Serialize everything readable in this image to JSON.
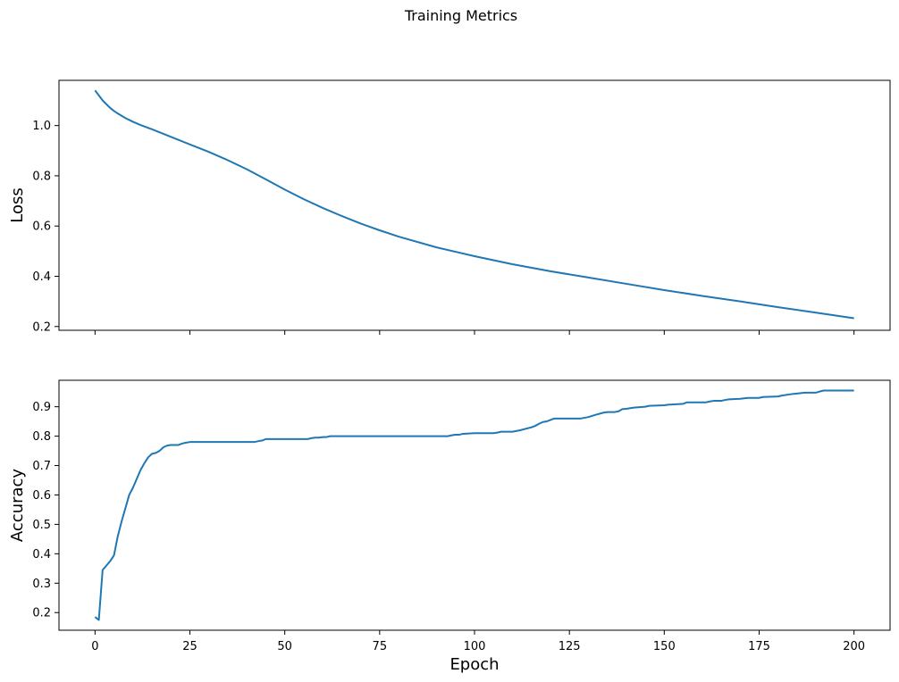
{
  "figure": {
    "title": "Training Metrics",
    "line_color": "#1f77b4"
  },
  "chart_data": [
    {
      "type": "line",
      "title": "",
      "xlabel": "",
      "ylabel": "Loss",
      "xlim": [
        -9.5,
        209.5
      ],
      "ylim": [
        0.185,
        1.18
      ],
      "x_ticks": [
        0,
        25,
        50,
        75,
        100,
        125,
        150,
        175,
        200
      ],
      "x_ticklabels_visible": false,
      "y_ticks": [
        0.2,
        0.4,
        0.6,
        0.8,
        1.0
      ],
      "y_ticklabels": [
        "0.2",
        "0.4",
        "0.6",
        "0.8",
        "1.0"
      ],
      "grid": false,
      "series": [
        {
          "x": [
            0,
            1,
            2,
            3,
            4,
            5,
            6,
            8,
            10,
            12,
            15,
            20,
            25,
            30,
            35,
            40,
            45,
            50,
            55,
            60,
            65,
            70,
            75,
            80,
            90,
            100,
            110,
            120,
            130,
            140,
            150,
            160,
            170,
            180,
            190,
            200
          ],
          "y": [
            1.14,
            1.12,
            1.1,
            1.085,
            1.07,
            1.058,
            1.048,
            1.03,
            1.015,
            1.002,
            0.985,
            0.955,
            0.925,
            0.895,
            0.862,
            0.826,
            0.786,
            0.745,
            0.707,
            0.672,
            0.64,
            0.61,
            0.583,
            0.558,
            0.515,
            0.48,
            0.448,
            0.42,
            0.395,
            0.37,
            0.345,
            0.322,
            0.3,
            0.277,
            0.255,
            0.233
          ]
        }
      ]
    },
    {
      "type": "line",
      "title": "",
      "xlabel": "Epoch",
      "ylabel": "Accuracy",
      "xlim": [
        -9.5,
        209.5
      ],
      "ylim": [
        0.14,
        0.99
      ],
      "x_ticks": [
        0,
        25,
        50,
        75,
        100,
        125,
        150,
        175,
        200
      ],
      "x_ticklabels": [
        "0",
        "25",
        "50",
        "75",
        "100",
        "125",
        "150",
        "175",
        "200"
      ],
      "y_ticks": [
        0.2,
        0.3,
        0.4,
        0.5,
        0.6,
        0.7,
        0.8,
        0.9
      ],
      "y_ticklabels": [
        "0.2",
        "0.3",
        "0.4",
        "0.5",
        "0.6",
        "0.7",
        "0.8",
        "0.9"
      ],
      "grid": false,
      "series": [
        {
          "x": [
            0,
            1,
            2,
            3,
            4,
            5,
            6,
            7,
            8,
            9,
            10,
            11,
            12,
            13,
            14,
            15,
            16,
            17,
            18,
            19,
            20,
            21,
            22,
            23,
            24,
            25,
            30,
            35,
            40,
            42,
            43,
            44,
            45,
            50,
            55,
            56,
            57,
            58,
            59,
            60,
            61,
            62,
            70,
            80,
            90,
            93,
            94,
            95,
            96,
            97,
            100,
            105,
            106,
            107,
            108,
            110,
            112,
            115,
            116,
            117,
            118,
            119,
            120,
            121,
            125,
            128,
            130,
            132,
            134,
            135,
            137,
            138,
            139,
            140,
            141,
            142,
            145,
            146,
            150,
            151,
            155,
            156,
            160,
            161,
            162,
            163,
            165,
            166,
            167,
            170,
            172,
            173,
            175,
            176,
            180,
            181,
            183,
            185,
            187,
            190,
            191,
            192,
            195,
            200
          ],
          "y": [
            0.185,
            0.175,
            0.345,
            0.36,
            0.375,
            0.395,
            0.46,
            0.51,
            0.555,
            0.6,
            0.625,
            0.655,
            0.685,
            0.708,
            0.728,
            0.74,
            0.743,
            0.75,
            0.762,
            0.768,
            0.77,
            0.77,
            0.77,
            0.775,
            0.778,
            0.78,
            0.78,
            0.78,
            0.78,
            0.78,
            0.783,
            0.785,
            0.79,
            0.79,
            0.79,
            0.79,
            0.793,
            0.795,
            0.795,
            0.797,
            0.797,
            0.8,
            0.8,
            0.8,
            0.8,
            0.8,
            0.803,
            0.805,
            0.805,
            0.808,
            0.81,
            0.81,
            0.812,
            0.815,
            0.815,
            0.815,
            0.82,
            0.83,
            0.835,
            0.842,
            0.848,
            0.85,
            0.855,
            0.86,
            0.86,
            0.86,
            0.865,
            0.873,
            0.88,
            0.882,
            0.882,
            0.885,
            0.892,
            0.893,
            0.895,
            0.897,
            0.9,
            0.903,
            0.905,
            0.907,
            0.91,
            0.915,
            0.915,
            0.915,
            0.918,
            0.92,
            0.92,
            0.923,
            0.925,
            0.927,
            0.93,
            0.93,
            0.93,
            0.933,
            0.935,
            0.938,
            0.942,
            0.945,
            0.948,
            0.948,
            0.952,
            0.955,
            0.955,
            0.955
          ]
        }
      ]
    }
  ]
}
